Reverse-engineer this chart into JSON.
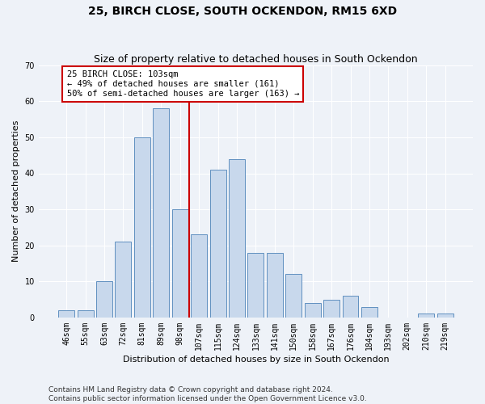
{
  "title": "25, BIRCH CLOSE, SOUTH OCKENDON, RM15 6XD",
  "subtitle": "Size of property relative to detached houses in South Ockendon",
  "xlabel": "Distribution of detached houses by size in South Ockendon",
  "ylabel": "Number of detached properties",
  "categories": [
    "46sqm",
    "55sqm",
    "63sqm",
    "72sqm",
    "81sqm",
    "89sqm",
    "98sqm",
    "107sqm",
    "115sqm",
    "124sqm",
    "133sqm",
    "141sqm",
    "150sqm",
    "158sqm",
    "167sqm",
    "176sqm",
    "184sqm",
    "193sqm",
    "202sqm",
    "210sqm",
    "219sqm"
  ],
  "values": [
    2,
    2,
    10,
    21,
    50,
    58,
    30,
    23,
    41,
    44,
    18,
    18,
    12,
    4,
    5,
    6,
    3,
    0,
    0,
    1,
    1
  ],
  "bar_color": "#c8d8ec",
  "bar_edge_color": "#6090c0",
  "vline_x": 6.5,
  "vline_color": "#cc0000",
  "annotation_text": "25 BIRCH CLOSE: 103sqm\n← 49% of detached houses are smaller (161)\n50% of semi-detached houses are larger (163) →",
  "annotation_box_color": "#ffffff",
  "annotation_box_edge": "#cc0000",
  "ylim": [
    0,
    70
  ],
  "yticks": [
    0,
    10,
    20,
    30,
    40,
    50,
    60,
    70
  ],
  "footer": "Contains HM Land Registry data © Crown copyright and database right 2024.\nContains public sector information licensed under the Open Government Licence v3.0.",
  "bg_color": "#eef2f8",
  "grid_color": "#ffffff",
  "title_fontsize": 10,
  "subtitle_fontsize": 9,
  "axis_label_fontsize": 8,
  "tick_fontsize": 7,
  "footer_fontsize": 6.5,
  "annotation_fontsize": 7.5
}
